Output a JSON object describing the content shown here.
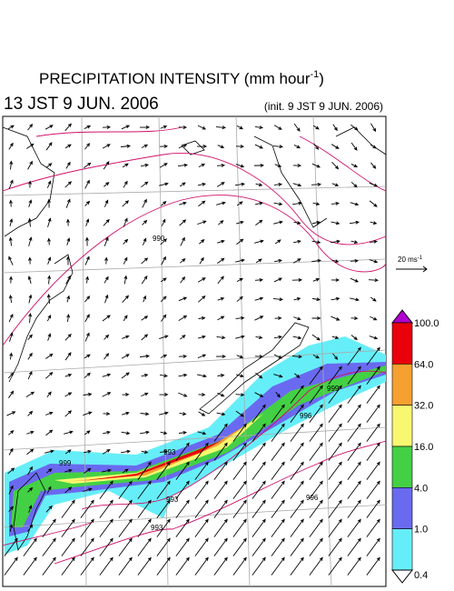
{
  "header": {
    "title": "PRECIPITATION INTENSITY (mm hour",
    "title_sup": "-1",
    "title_end": ")",
    "valid_time": "13 JST 9 JUN. 2006",
    "init_time": "(init. 9 JST 9 JUN. 2006)"
  },
  "wind_scale": {
    "label": "20 ms",
    "label_sup": "-1"
  },
  "contour_labels": [
    "990",
    "993",
    "993",
    "993",
    "996",
    "996",
    "999",
    "999"
  ],
  "colorbar": {
    "labels": [
      "100.0",
      "64.0",
      "32.0",
      "16.0",
      "4.0",
      "1.0",
      "0.4"
    ],
    "colors": [
      "#e8000b",
      "#f5a030",
      "#f8f870",
      "#44d044",
      "#6a6af0",
      "#66eef8"
    ],
    "over_color": "#b000d0",
    "under_color": "#ffffff"
  }
}
